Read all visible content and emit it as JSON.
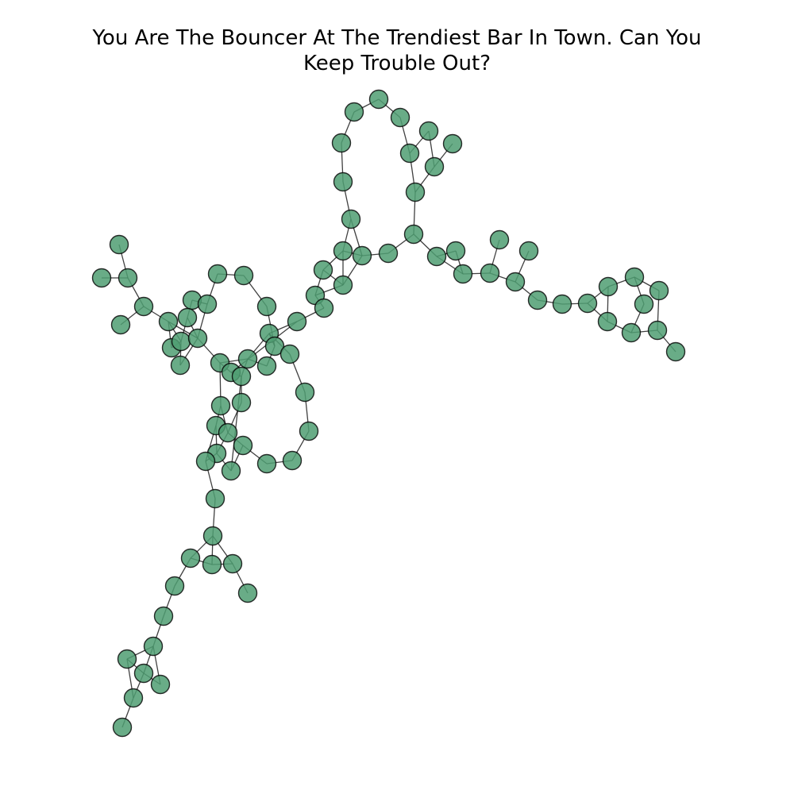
{
  "title": {
    "line1": "You Are The Bouncer At The Trendiest Bar In Town. Can You",
    "line2": "Keep Trouble Out?"
  },
  "colors": {
    "node_fill": "#4f9e72",
    "edge": "#000000",
    "background": "#ffffff"
  }
}
